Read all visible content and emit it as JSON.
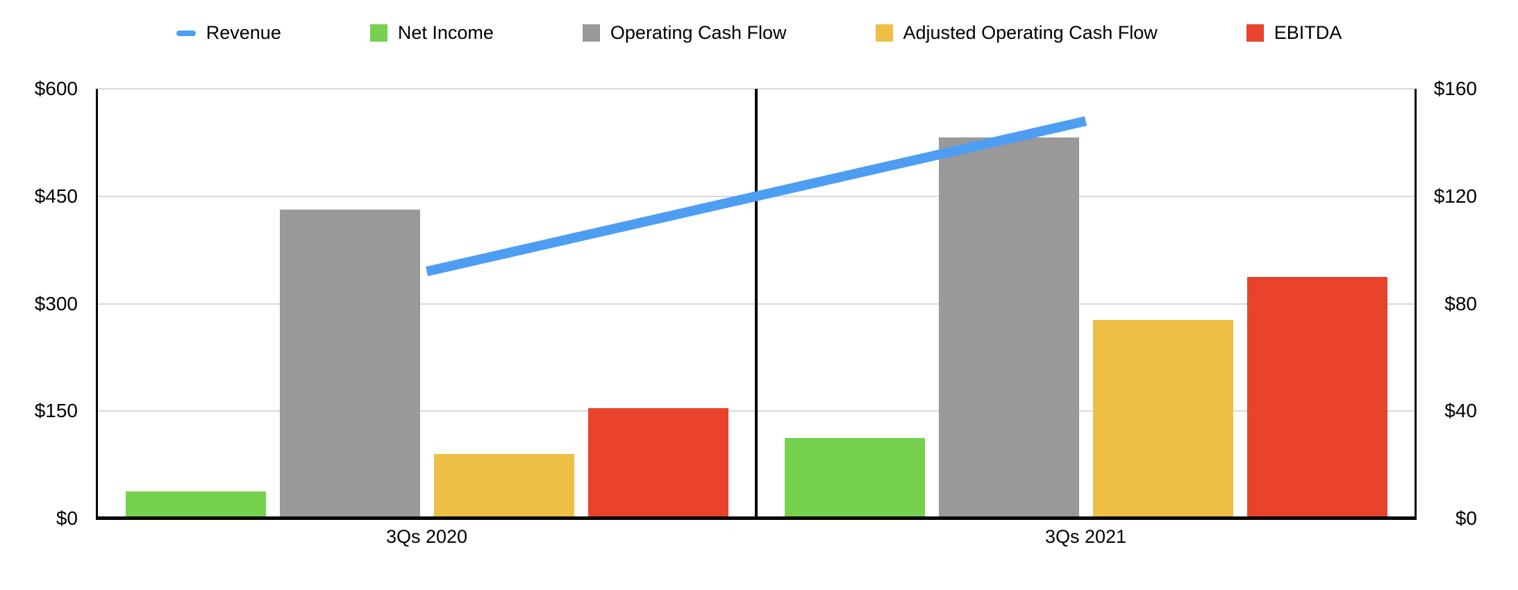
{
  "chart_data": {
    "type": "combo bar+line, dual axis",
    "categories": [
      "3Qs 2020",
      "3Qs 2021"
    ],
    "series": [
      {
        "name": "Revenue",
        "type": "line",
        "axis": "left",
        "color": "#4d9ef2",
        "values": [
          345,
          555
        ]
      },
      {
        "name": "Net Income",
        "type": "bar",
        "axis": "right",
        "color": "#76d14e",
        "values": [
          10,
          30
        ]
      },
      {
        "name": "Operating Cash Flow",
        "type": "bar",
        "axis": "right",
        "color": "#999999",
        "values": [
          115,
          142
        ]
      },
      {
        "name": "Adjusted Operating Cash Flow",
        "type": "bar",
        "axis": "right",
        "color": "#edbf45",
        "values": [
          24,
          74
        ]
      },
      {
        "name": "EBITDA",
        "type": "bar",
        "axis": "right",
        "color": "#e9432b",
        "values": [
          41,
          90
        ]
      }
    ],
    "left_axis": {
      "ticks": [
        "$600",
        "$450",
        "$300",
        "$150",
        "$0"
      ],
      "min": 0,
      "max": 600
    },
    "right_axis": {
      "ticks": [
        "$160",
        "$120",
        "$80",
        "$40",
        "$0"
      ],
      "min": 0,
      "max": 160
    },
    "grid": true,
    "legend_position": "top",
    "title": ""
  },
  "colors": {
    "background": "#ffffff",
    "gridline": "#d9d9d9",
    "axis": "#000000",
    "text": "#000000"
  }
}
